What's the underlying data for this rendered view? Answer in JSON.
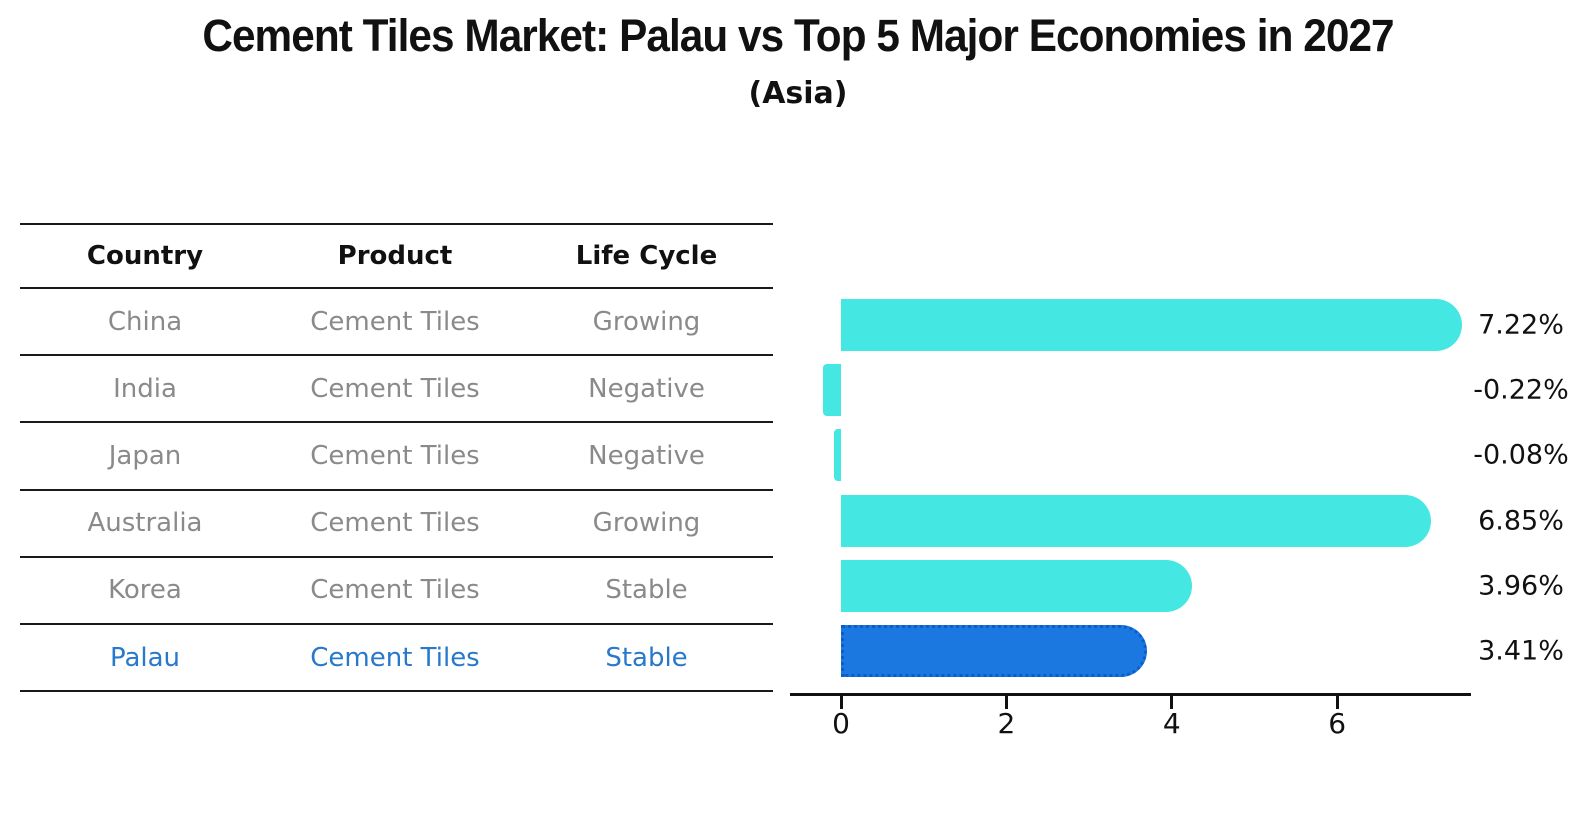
{
  "title": "Cement Tiles Market: Palau vs Top 5 Major Economies in 2027",
  "subtitle": "(Asia)",
  "table": {
    "columns": [
      "Country",
      "Product",
      "Life Cycle"
    ],
    "rows": [
      {
        "country": "China",
        "product": "Cement Tiles",
        "life_cycle": "Growing",
        "highlight": false
      },
      {
        "country": "India",
        "product": "Cement Tiles",
        "life_cycle": "Negative",
        "highlight": false
      },
      {
        "country": "Japan",
        "product": "Cement Tiles",
        "life_cycle": "Negative",
        "highlight": false
      },
      {
        "country": "Australia",
        "product": "Cement Tiles",
        "life_cycle": "Growing",
        "highlight": false
      },
      {
        "country": "Korea",
        "product": "Cement Tiles",
        "life_cycle": "Stable",
        "highlight": false
      },
      {
        "country": "Palau",
        "product": "Cement Tiles",
        "life_cycle": "Stable",
        "highlight": true
      }
    ]
  },
  "chart_data": {
    "type": "bar",
    "orientation": "horizontal",
    "title": "Cement Tiles Market: Palau vs Top 5 Major Economies in 2027 (Asia)",
    "categories": [
      "China",
      "India",
      "Japan",
      "Australia",
      "Korea",
      "Palau"
    ],
    "values": [
      7.22,
      -0.22,
      -0.08,
      6.85,
      3.96,
      3.41
    ],
    "value_labels": [
      "7.22%",
      "-0.22%",
      "-0.08%",
      "6.85%",
      "3.96%",
      "3.41%"
    ],
    "x_ticks": [
      "0",
      "2",
      "4",
      "6"
    ],
    "x_tick_values": [
      0,
      2,
      4,
      6
    ],
    "xlim": [
      -0.62,
      7.62
    ],
    "grid": false,
    "legend": "none",
    "highlight_index": 5
  },
  "colors": {
    "bar": "#45e7e3",
    "highlight_fill": "#1b78e0",
    "highlight_border": "#0d5dc8",
    "highlight_text": "#2878cc",
    "table_text": "#8a8a8a",
    "heading_text": "#111111"
  }
}
